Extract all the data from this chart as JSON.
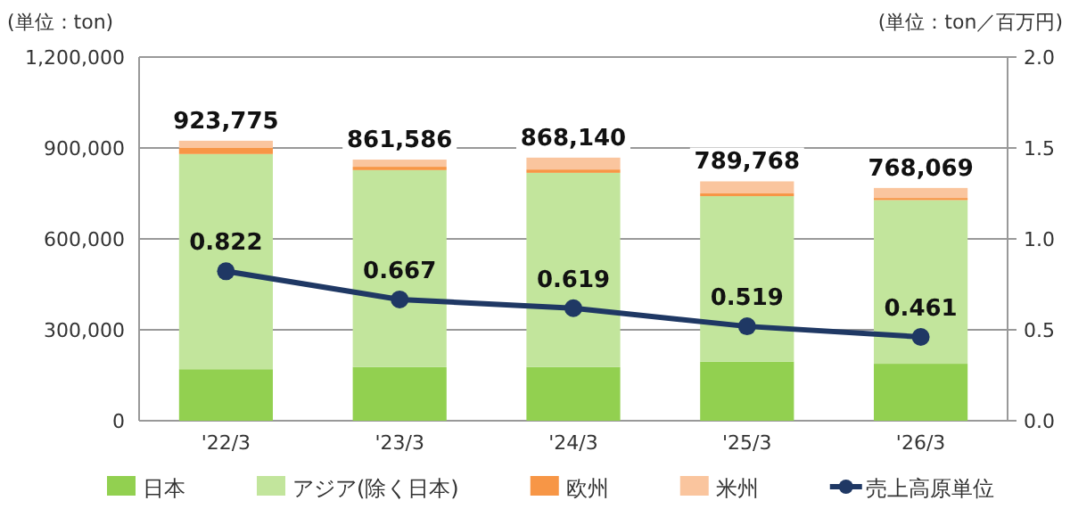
{
  "chart_data": {
    "type": "bar",
    "stacked": true,
    "ylabel": "(単位：ton)",
    "y2label": "(単位：ton／百万円)",
    "categories": [
      "'22/3",
      "'23/3",
      "'24/3",
      "'25/3",
      "'26/3"
    ],
    "series": [
      {
        "name": "日本",
        "color": "#92d050",
        "values": [
          170000,
          177000,
          177000,
          195000,
          188000
        ]
      },
      {
        "name": "アジア(除く日本)",
        "color": "#c2e59c",
        "values": [
          710000,
          650000,
          641000,
          546000,
          540000
        ]
      },
      {
        "name": "欧州",
        "color": "#f79646",
        "values": [
          20000,
          11000,
          11000,
          9000,
          7000
        ]
      },
      {
        "name": "米州",
        "color": "#fac59e",
        "values": [
          23775,
          23586,
          39140,
          39768,
          33069
        ]
      },
      {
        "name": "売上高原単位",
        "type": "line",
        "axis": "y2",
        "color": "#1f3864",
        "marker": "circle",
        "data_labels": true,
        "values": [
          0.822,
          0.667,
          0.619,
          0.519,
          0.461
        ]
      }
    ],
    "totals": [
      "923,775",
      "861,586",
      "868,140",
      "789,768",
      "768,069"
    ],
    "ylim": [
      0,
      1200000
    ],
    "yticks": [
      {
        "value": 0,
        "label": "0"
      },
      {
        "value": 300000,
        "label": "300,000"
      },
      {
        "value": 600000,
        "label": "600,000"
      },
      {
        "value": 900000,
        "label": "900,000"
      },
      {
        "value": 1200000,
        "label": "1,200,000"
      }
    ],
    "y2lim": [
      0,
      2
    ],
    "y2ticks": [
      {
        "value": 0,
        "label": "0.0"
      },
      {
        "value": 0.5,
        "label": "0.5"
      },
      {
        "value": 1,
        "label": "1.0"
      },
      {
        "value": 1.5,
        "label": "1.5"
      },
      {
        "value": 2,
        "label": "2.0"
      }
    ],
    "grid": "y",
    "legend": "bottom"
  }
}
